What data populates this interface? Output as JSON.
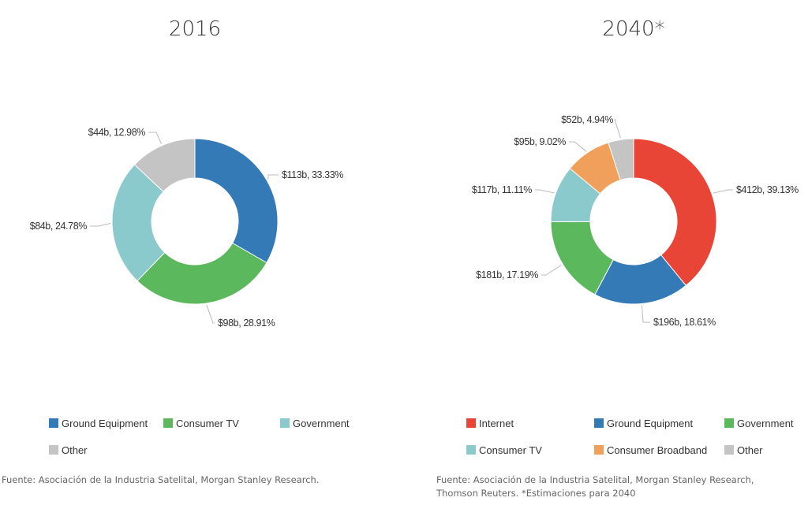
{
  "colors": {
    "blue": "#337ab7",
    "green": "#5cb85c",
    "teal": "#8ac9cc",
    "gray": "#c4c4c4",
    "red": "#e84536",
    "orange": "#f0a05a",
    "leader": "#bbbbbb"
  },
  "chart_data": [
    {
      "type": "pie",
      "donut": true,
      "title": "2016",
      "series": [
        {
          "name": "Ground Equipment",
          "value": 113,
          "percent": 33.33,
          "label": "$113b, 33.33%",
          "color": "#337ab7"
        },
        {
          "name": "Consumer TV",
          "value": 98,
          "percent": 28.91,
          "label": "$98b, 28.91%",
          "color": "#5cb85c"
        },
        {
          "name": "Government",
          "value": 84,
          "percent": 24.78,
          "label": "$84b, 24.78%",
          "color": "#8ac9cc"
        },
        {
          "name": "Other",
          "value": 44,
          "percent": 12.98,
          "label": "$44b, 12.98%",
          "color": "#c4c4c4"
        }
      ],
      "legend": [
        "Ground Equipment",
        "Consumer TV",
        "Government",
        "Other"
      ],
      "source": [
        "Fuente: Asociación de la Industria Satelital, Morgan Stanley Research."
      ]
    },
    {
      "type": "pie",
      "donut": true,
      "title": "2040*",
      "series": [
        {
          "name": "Internet",
          "value": 412,
          "percent": 39.13,
          "label": "$412b, 39.13%",
          "color": "#e84536"
        },
        {
          "name": "Ground Equipment",
          "value": 196,
          "percent": 18.61,
          "label": "$196b, 18.61%",
          "color": "#337ab7"
        },
        {
          "name": "Government",
          "value": 181,
          "percent": 17.19,
          "label": "$181b, 17.19%",
          "color": "#5cb85c"
        },
        {
          "name": "Consumer TV",
          "value": 117,
          "percent": 11.11,
          "label": "$117b, 11.11%",
          "color": "#8ac9cc"
        },
        {
          "name": "Consumer Broadband",
          "value": 95,
          "percent": 9.02,
          "label": "$95b, 9.02%",
          "color": "#f0a05a"
        },
        {
          "name": "Other",
          "value": 52,
          "percent": 4.94,
          "label": "$52b, 4.94%",
          "color": "#c4c4c4"
        }
      ],
      "legend": [
        "Internet",
        "Ground Equipment",
        "Government",
        "Consumer TV",
        "Consumer Broadband",
        "Other"
      ],
      "source": [
        "Fuente: Asociación de la Industria Satelital, Morgan Stanley Research,",
        "Thomson Reuters. *Estimaciones para 2040"
      ]
    }
  ]
}
